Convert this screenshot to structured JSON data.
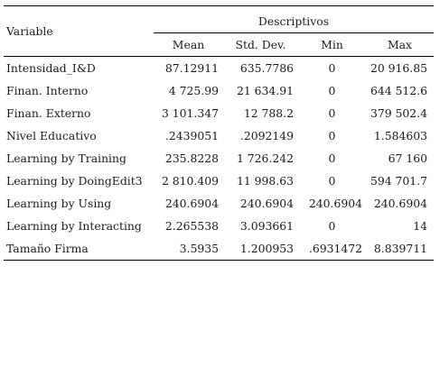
{
  "table": {
    "variable_header": "Variable",
    "group_header": "Descriptivos",
    "columns": [
      "Mean",
      "Std. Dev.",
      "Min",
      "Max"
    ],
    "rows": [
      {
        "variable": "Intensidad_I&D",
        "mean": "87.12911",
        "sd": "635.7786",
        "min": "0",
        "max": "20 916.85"
      },
      {
        "variable": "Finan. Interno",
        "mean": "4 725.99",
        "sd": "21 634.91",
        "min": "0",
        "max": "644 512.6"
      },
      {
        "variable": "Finan. Externo",
        "mean": "3 101.347",
        "sd": "12 788.2",
        "min": "0",
        "max": "379 502.4"
      },
      {
        "variable": "Nivel Educativo",
        "mean": ".2439051",
        "sd": ".2092149",
        "min": "0",
        "max": "1.584603"
      },
      {
        "variable": "Learning by Training",
        "mean": "235.8228",
        "sd": "1 726.242",
        "min": "0",
        "max": "67 160"
      },
      {
        "variable": "Learning by DoingEdit3",
        "mean": "2 810.409",
        "sd": "11 998.63",
        "min": "0",
        "max": "594 701.7"
      },
      {
        "variable": "Learning by Using",
        "mean": "240.6904",
        "sd": "240.6904",
        "min": "240.6904",
        "max": "240.6904"
      },
      {
        "variable": "Learning by Interacting",
        "mean": "2.265538",
        "sd": "3.093661",
        "min": "0",
        "max": "14"
      },
      {
        "variable": "Tamaño Firma",
        "mean": "3.5935",
        "sd": "1.200953",
        "min": ".6931472",
        "max": "8.839711"
      }
    ]
  }
}
